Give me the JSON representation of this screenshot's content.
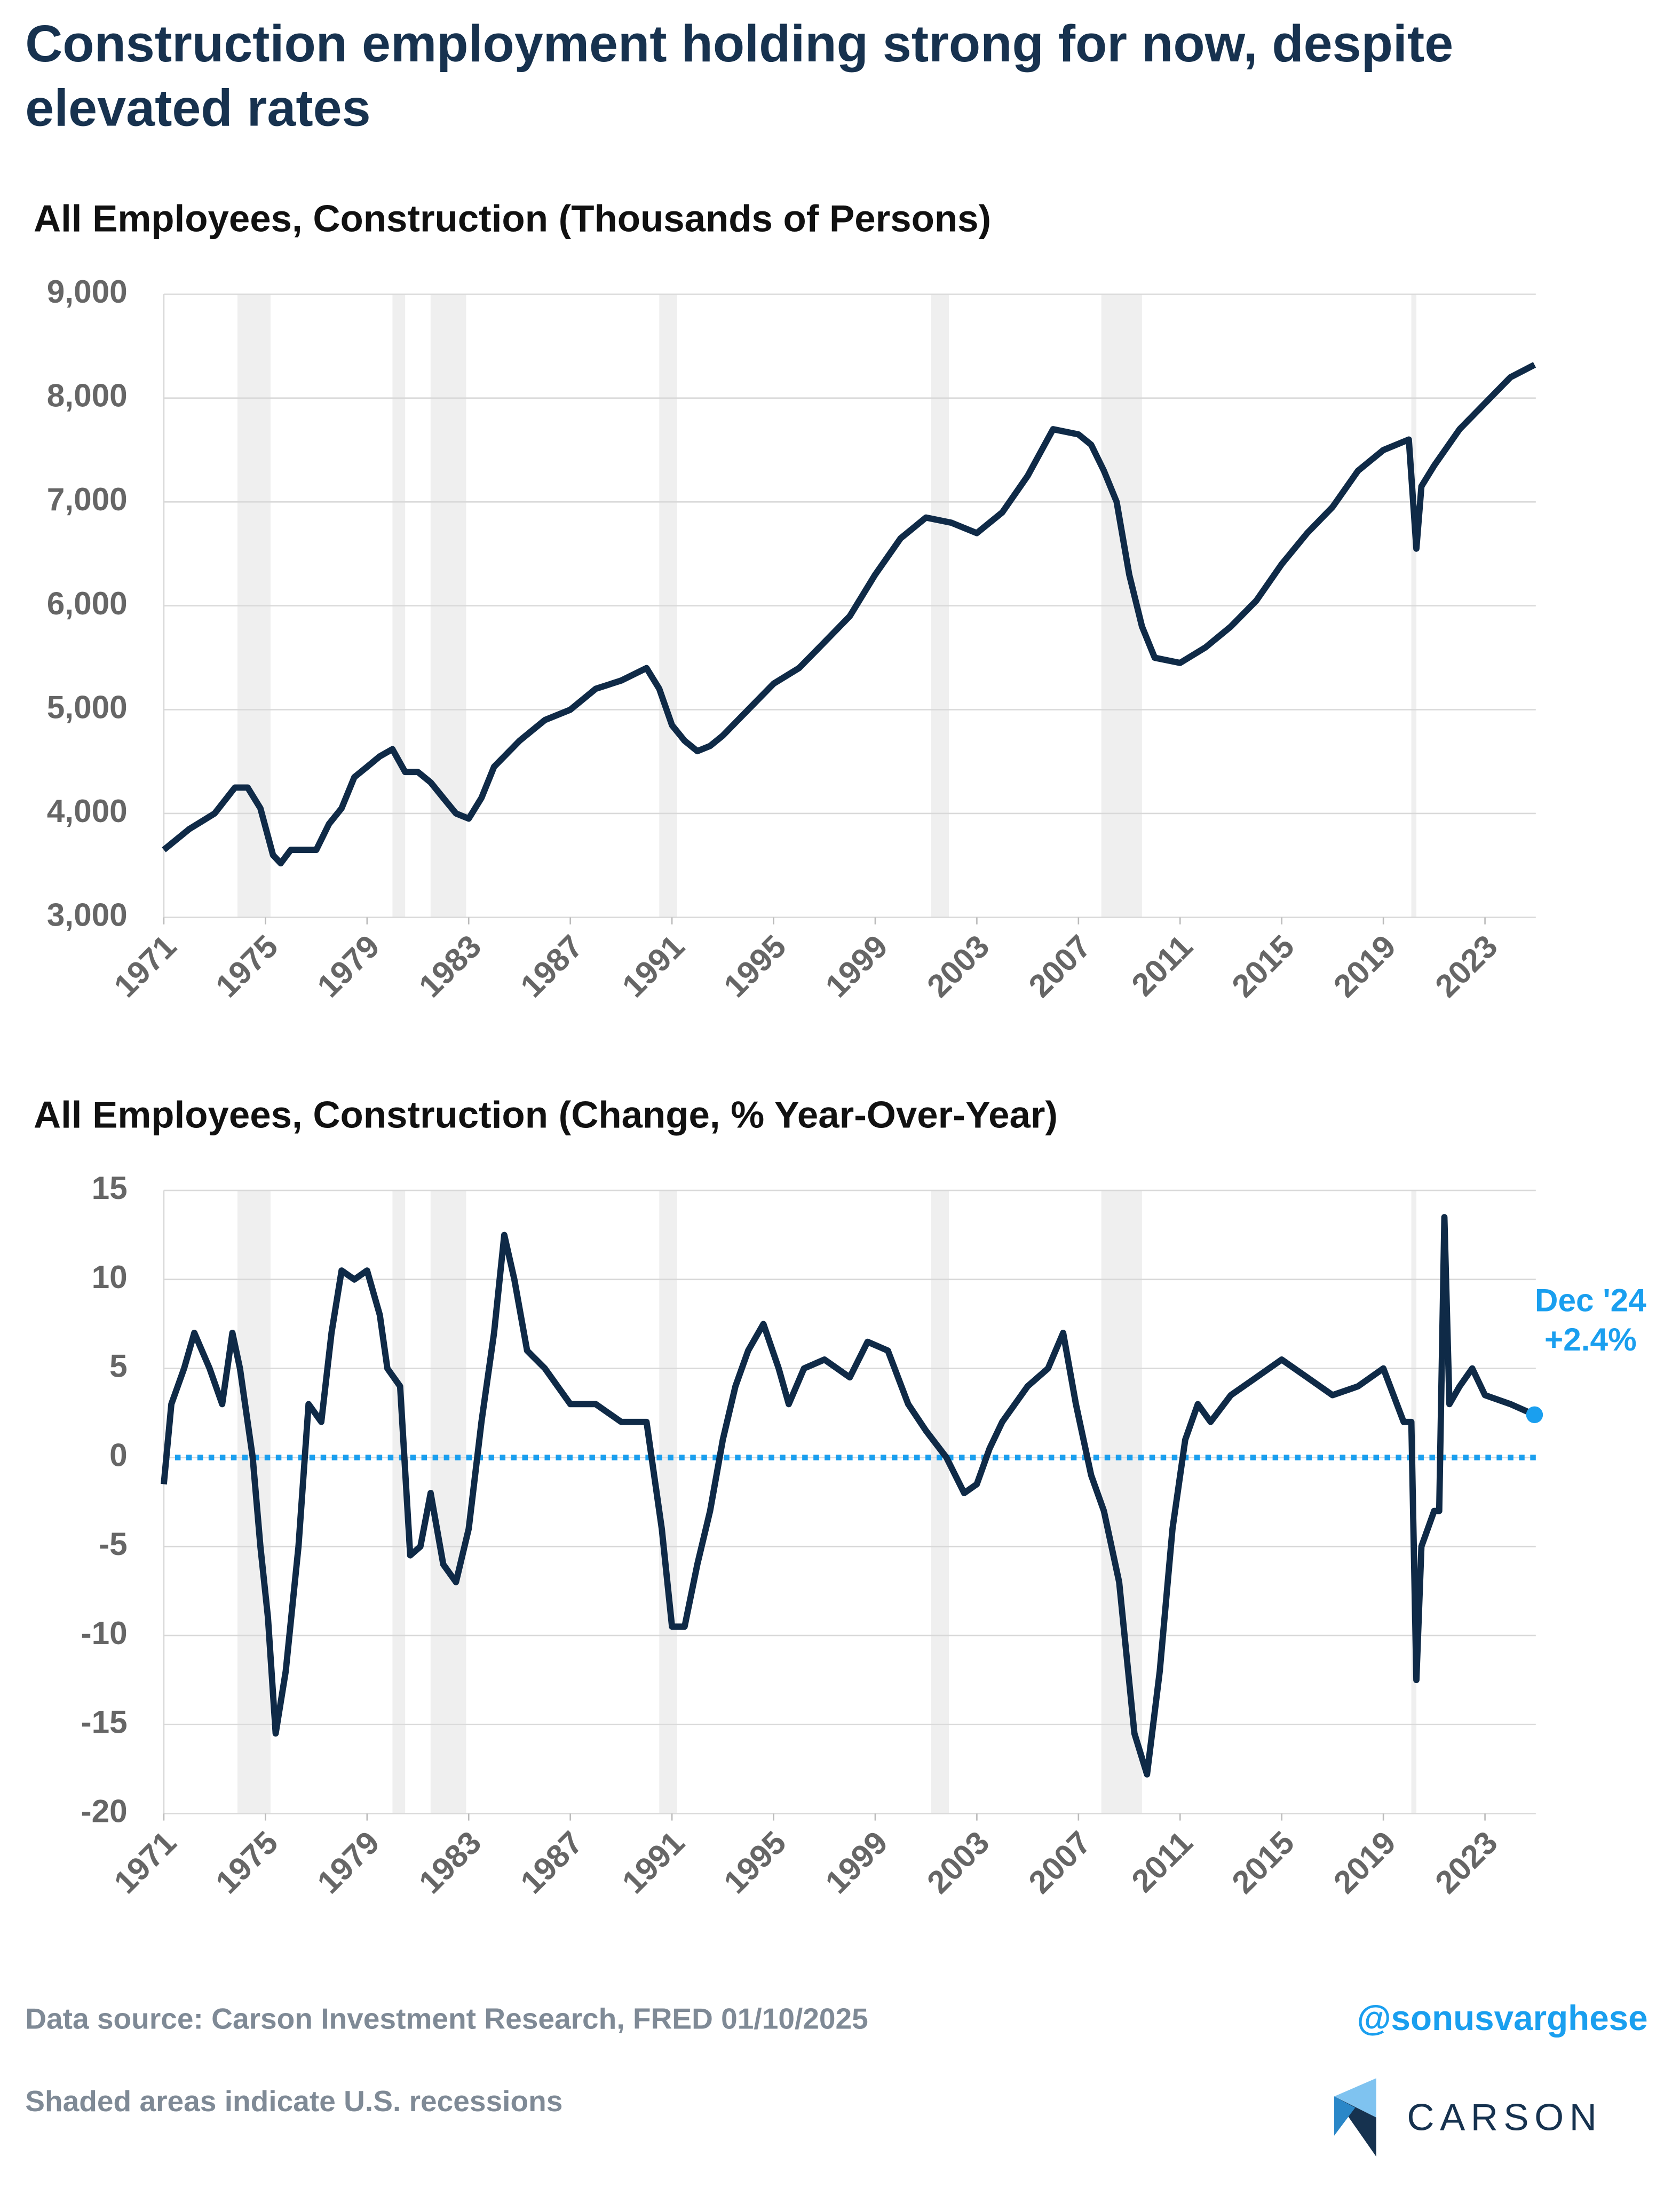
{
  "title": [
    "Construction employment holding strong for now, despite",
    "elevated rates"
  ],
  "recessions": [
    [
      1973.9,
      1975.2
    ],
    [
      1980.0,
      1980.5
    ],
    [
      1981.5,
      1982.9
    ],
    [
      1990.5,
      1991.2
    ],
    [
      2001.2,
      2001.9
    ],
    [
      2007.9,
      2009.5
    ],
    [
      2020.1,
      2020.3
    ]
  ],
  "chart_data": [
    {
      "type": "line",
      "title": "All Employees, Construction (Thousands of Persons)",
      "color": "#0f2a47",
      "xlim": [
        1971,
        2025
      ],
      "xticks": [
        1971,
        1975,
        1979,
        1983,
        1987,
        1991,
        1995,
        1999,
        2003,
        2007,
        2011,
        2015,
        2019,
        2023
      ],
      "ylim": [
        3000,
        9000
      ],
      "yticks": [
        {
          "value": 3000,
          "label": "3,000"
        },
        {
          "value": 4000,
          "label": "4,000"
        },
        {
          "value": 5000,
          "label": "5,000"
        },
        {
          "value": 6000,
          "label": "6,000"
        },
        {
          "value": 7000,
          "label": "7,000"
        },
        {
          "value": 8000,
          "label": "8,000"
        },
        {
          "value": 9000,
          "label": "9,000"
        }
      ],
      "grid": true,
      "x": [
        1971,
        1972,
        1973,
        1973.8,
        1974.3,
        1974.8,
        1975.3,
        1975.6,
        1976,
        1977,
        1977.5,
        1978,
        1978.5,
        1979,
        1979.5,
        1980,
        1980.5,
        1981,
        1981.5,
        1982,
        1982.5,
        1983,
        1983.5,
        1984,
        1985,
        1986,
        1987,
        1988,
        1989,
        1990,
        1990.5,
        1991,
        1991.5,
        1992,
        1992.5,
        1993,
        1994,
        1995,
        1996,
        1997,
        1998,
        1999,
        2000,
        2001,
        2002,
        2003,
        2004,
        2005,
        2006,
        2007,
        2007.5,
        2008,
        2008.5,
        2009,
        2009.5,
        2010,
        2011,
        2012,
        2013,
        2014,
        2015,
        2016,
        2017,
        2018,
        2019,
        2020,
        2020.3,
        2020.5,
        2021,
        2022,
        2023,
        2024,
        2024.95
      ],
      "values": [
        3650,
        3850,
        4000,
        4250,
        4250,
        4050,
        3600,
        3520,
        3650,
        3650,
        3900,
        4050,
        4350,
        4450,
        4550,
        4620,
        4400,
        4400,
        4300,
        4150,
        4000,
        3950,
        4150,
        4450,
        4700,
        4900,
        5000,
        5200,
        5280,
        5400,
        5200,
        4850,
        4700,
        4600,
        4650,
        4750,
        5000,
        5250,
        5400,
        5650,
        5900,
        6300,
        6650,
        6850,
        6800,
        6700,
        6900,
        7250,
        7700,
        7650,
        7550,
        7300,
        7000,
        6300,
        5800,
        5500,
        5450,
        5600,
        5800,
        6050,
        6400,
        6700,
        6950,
        7300,
        7500,
        7600,
        6550,
        7150,
        7350,
        7700,
        7950,
        8200,
        8320
      ]
    },
    {
      "type": "line",
      "title": "All Employees, Construction (Change, % Year-Over-Year)",
      "color": "#0f2a47",
      "xlim": [
        1971,
        2025
      ],
      "xticks": [
        1971,
        1975,
        1979,
        1983,
        1987,
        1991,
        1995,
        1999,
        2003,
        2007,
        2011,
        2015,
        2019,
        2023
      ],
      "ylim": [
        -20,
        15
      ],
      "yticks": [
        -20,
        -15,
        -10,
        -5,
        0,
        5,
        10,
        15
      ],
      "grid": true,
      "reference_line": {
        "value": 0,
        "color": "#1a9fef"
      },
      "annotation": {
        "text": "Dec '24",
        "value_label": "+2.4%",
        "color": "#1a9fef"
      },
      "x": [
        1971,
        1971.3,
        1971.8,
        1972.2,
        1972.8,
        1973.3,
        1973.7,
        1974,
        1974.5,
        1974.8,
        1975.1,
        1975.4,
        1975.8,
        1976.3,
        1976.7,
        1977.2,
        1977.6,
        1978,
        1978.5,
        1979,
        1979.5,
        1979.8,
        1980.3,
        1980.7,
        1981.1,
        1981.5,
        1982,
        1982.5,
        1983,
        1983.5,
        1984,
        1984.4,
        1984.8,
        1985.3,
        1986,
        1987,
        1988,
        1989,
        1990,
        1990.6,
        1991,
        1991.5,
        1992,
        1992.5,
        1993,
        1993.5,
        1994,
        1994.6,
        1995.2,
        1995.6,
        1996.2,
        1997,
        1998,
        1998.7,
        1999.5,
        2000.3,
        2001,
        2001.8,
        2002.5,
        2003,
        2003.5,
        2004,
        2005,
        2005.8,
        2006.4,
        2006.9,
        2007.5,
        2008,
        2008.6,
        2009.2,
        2009.7,
        2010.2,
        2010.7,
        2011.2,
        2011.7,
        2012.2,
        2013,
        2014,
        2015,
        2016,
        2017,
        2018,
        2019,
        2019.8,
        2020.1,
        2020.3,
        2020.5,
        2021,
        2021.2,
        2021.4,
        2021.6,
        2022,
        2022.5,
        2023,
        2024,
        2024.95
      ],
      "values": [
        -1.5,
        3,
        5,
        7,
        5,
        3,
        7,
        5,
        0,
        -5,
        -9,
        -15.5,
        -12,
        -5,
        3,
        2,
        7,
        10.5,
        10,
        10.5,
        8,
        5,
        4,
        -5.5,
        -5,
        -2,
        -6,
        -7,
        -4,
        2,
        7,
        12.5,
        10,
        6,
        5,
        3,
        3,
        2,
        2,
        -4,
        -9.5,
        -9.5,
        -6,
        -3,
        1,
        4,
        6,
        7.5,
        5,
        3,
        5,
        5.5,
        4.5,
        6.5,
        6,
        3,
        1.5,
        0,
        -2,
        -1.5,
        0.5,
        2,
        4,
        5,
        7,
        3,
        -1,
        -3,
        -7,
        -15.5,
        -17.8,
        -12,
        -4,
        1,
        3,
        2,
        3.5,
        4.5,
        5.5,
        4.5,
        3.5,
        4,
        5,
        2,
        2,
        -12.5,
        -5,
        -3,
        -3,
        13.5,
        3,
        4,
        5,
        3.5,
        3,
        2.4
      ]
    }
  ],
  "footer": {
    "source": "Data source: Carson Investment Research, FRED   01/10/2025",
    "note": "Shaded areas indicate U.S. recessions",
    "handle": "@sonusvarghese",
    "brand": "CARSON"
  }
}
